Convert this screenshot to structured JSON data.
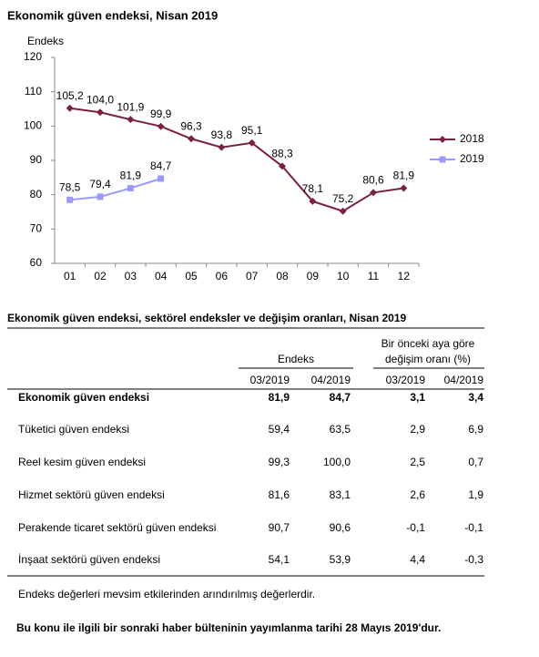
{
  "chart_data": {
    "type": "line",
    "title": "Ekonomik güven endeksi, Nisan 2019",
    "y_label": "Endeks",
    "categories": [
      "01",
      "02",
      "03",
      "04",
      "05",
      "06",
      "07",
      "08",
      "09",
      "10",
      "11",
      "12"
    ],
    "series": [
      {
        "name": "2018",
        "color": "#7b1f45",
        "marker": "diamond",
        "values": [
          105.2,
          104.0,
          101.9,
          99.9,
          96.3,
          93.8,
          95.1,
          88.3,
          78.1,
          75.2,
          80.6,
          81.9
        ],
        "value_labels": [
          "105,2",
          "104,0",
          "101,9",
          "99,9",
          "96,3",
          "93,8",
          "95,1",
          "88,3",
          "78,1",
          "75,2",
          "80,6",
          "81,9"
        ]
      },
      {
        "name": "2019",
        "color": "#9999ff",
        "marker": "square",
        "values": [
          78.5,
          79.4,
          81.9,
          84.7,
          null,
          null,
          null,
          null,
          null,
          null,
          null,
          null
        ],
        "value_labels": [
          "78,5",
          "79,4",
          "81,9",
          "84,7",
          null,
          null,
          null,
          null,
          null,
          null,
          null,
          null
        ]
      }
    ],
    "ylim": [
      60,
      120
    ],
    "yticks": [
      60,
      70,
      80,
      90,
      100,
      110,
      120
    ],
    "grid": false,
    "legend": "right"
  },
  "table": {
    "title": "Ekonomik güven endeksi, sektörel endeksler ve değişim oranları, Nisan 2019",
    "groups": [
      [
        "Endeks"
      ],
      [
        "Bir önceki aya göre",
        "değişim oranı (%)"
      ]
    ],
    "columns": [
      "03/2019",
      "04/2019",
      "03/2019",
      "04/2019"
    ],
    "rows": [
      [
        "Ekonomik güven endeksi",
        "81,9",
        "84,7",
        "3,1",
        "3,4"
      ],
      [
        "Tüketici güven endeksi",
        "59,4",
        "63,5",
        "2,9",
        "6,9"
      ],
      [
        "Reel kesim güven endeksi",
        "99,3",
        "100,0",
        "2,5",
        "0,7"
      ],
      [
        "Hizmet sektörü güven endeksi",
        "81,6",
        "83,1",
        "2,6",
        "1,9"
      ],
      [
        "Perakende ticaret sektörü güven endeksi",
        "90,7",
        "90,6",
        "-0,1",
        "-0,1"
      ],
      [
        "İnşaat sektörü güven endeksi",
        "54,1",
        "53,9",
        "4,4",
        "-0,3"
      ]
    ],
    "note": "Endeks değerleri mevsim etkilerinden arındırılmış değerlerdir."
  },
  "footer": "Bu konu ile ilgili bir sonraki haber bülteninin yayımlanma tarihi 28 Mayıs 2019'dur."
}
